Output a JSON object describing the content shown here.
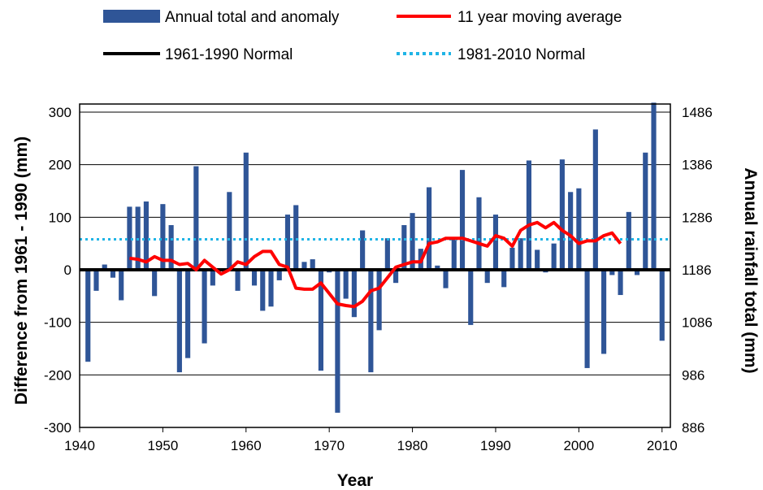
{
  "chart_data": {
    "type": "bar",
    "title": "",
    "xlabel": "Year",
    "ylabel": "Difference from 1961 - 1990 (mm)",
    "y2label": "Annual rainfall total (mm)",
    "xlim": [
      1940,
      2011
    ],
    "ylim": [
      -300,
      320
    ],
    "y2_offset": 1186,
    "grid": true,
    "legend_position": "top",
    "x_ticks": [
      "1940",
      "1950",
      "1960",
      "1970",
      "1980",
      "1990",
      "2000",
      "2010"
    ],
    "y_ticks": [
      "300",
      "200",
      "100",
      "0",
      "-100",
      "-200",
      "-300"
    ],
    "y2_ticks": [
      "1486",
      "1386",
      "1286",
      "1186",
      "1086",
      "986",
      "886"
    ],
    "legend": [
      {
        "label": "Annual total and anomaly",
        "kind": "bar",
        "color": "#2f5597"
      },
      {
        "label": "11 year moving average",
        "kind": "line",
        "color": "#ff0000"
      },
      {
        "label": "1961-1990 Normal",
        "kind": "line",
        "color": "#000000"
      },
      {
        "label": "1981-2010 Normal",
        "kind": "dotted",
        "color": "#1fb4e6"
      }
    ],
    "series": [
      {
        "name": "Annual total and anomaly",
        "type": "bar",
        "color": "#2f5597",
        "x": [
          1941,
          1942,
          1943,
          1944,
          1945,
          1946,
          1947,
          1948,
          1949,
          1950,
          1951,
          1952,
          1953,
          1954,
          1955,
          1956,
          1957,
          1958,
          1959,
          1960,
          1961,
          1962,
          1963,
          1964,
          1965,
          1966,
          1967,
          1968,
          1969,
          1970,
          1971,
          1972,
          1973,
          1974,
          1975,
          1976,
          1977,
          1978,
          1979,
          1980,
          1981,
          1982,
          1983,
          1984,
          1985,
          1986,
          1987,
          1988,
          1989,
          1990,
          1991,
          1992,
          1993,
          1994,
          1995,
          1996,
          1997,
          1998,
          1999,
          2000,
          2001,
          2002,
          2003,
          2004,
          2005,
          2006,
          2007,
          2008,
          2009,
          2010
        ],
        "values": [
          -175,
          -40,
          10,
          -15,
          -58,
          120,
          120,
          130,
          -50,
          125,
          85,
          -195,
          -168,
          197,
          -140,
          -30,
          0,
          148,
          -40,
          223,
          -30,
          -78,
          -70,
          -20,
          105,
          123,
          15,
          20,
          -192,
          -5,
          -272,
          -55,
          -90,
          75,
          -195,
          -115,
          60,
          -25,
          85,
          108,
          40,
          157,
          8,
          -35,
          60,
          190,
          -105,
          138,
          -25,
          105,
          -33,
          42,
          60,
          208,
          38,
          -5,
          50,
          210,
          148,
          155,
          -187,
          267,
          -160,
          -10,
          -48,
          110,
          -10,
          223,
          318,
          -135
        ]
      },
      {
        "name": "11 year moving average",
        "type": "line",
        "color": "#ff0000",
        "x": [
          1946,
          1947,
          1948,
          1949,
          1950,
          1951,
          1952,
          1953,
          1954,
          1955,
          1956,
          1957,
          1958,
          1959,
          1960,
          1961,
          1962,
          1963,
          1964,
          1965,
          1966,
          1967,
          1968,
          1969,
          1970,
          1971,
          1972,
          1973,
          1974,
          1975,
          1976,
          1977,
          1978,
          1979,
          1980,
          1981,
          1982,
          1983,
          1984,
          1985,
          1986,
          1987,
          1988,
          1989,
          1990,
          1991,
          1992,
          1993,
          1994,
          1995,
          1996,
          1997,
          1998,
          1999,
          2000,
          2001,
          2002,
          2003,
          2004,
          2005
        ],
        "values": [
          22,
          20,
          15,
          25,
          18,
          18,
          10,
          12,
          0,
          18,
          5,
          -8,
          0,
          15,
          10,
          25,
          35,
          35,
          10,
          5,
          -35,
          -37,
          -37,
          -25,
          -45,
          -65,
          -68,
          -70,
          -60,
          -40,
          -35,
          -15,
          5,
          10,
          15,
          15,
          50,
          53,
          60,
          60,
          60,
          55,
          50,
          45,
          65,
          60,
          45,
          75,
          85,
          90,
          80,
          90,
          75,
          65,
          50,
          55,
          55,
          65,
          70,
          50
        ]
      },
      {
        "name": "1961-1990 Normal",
        "type": "hline",
        "color": "#000000",
        "value": 0
      },
      {
        "name": "1981-2010 Normal",
        "type": "hline-dotted",
        "color": "#1fb4e6",
        "value": 58
      }
    ]
  }
}
